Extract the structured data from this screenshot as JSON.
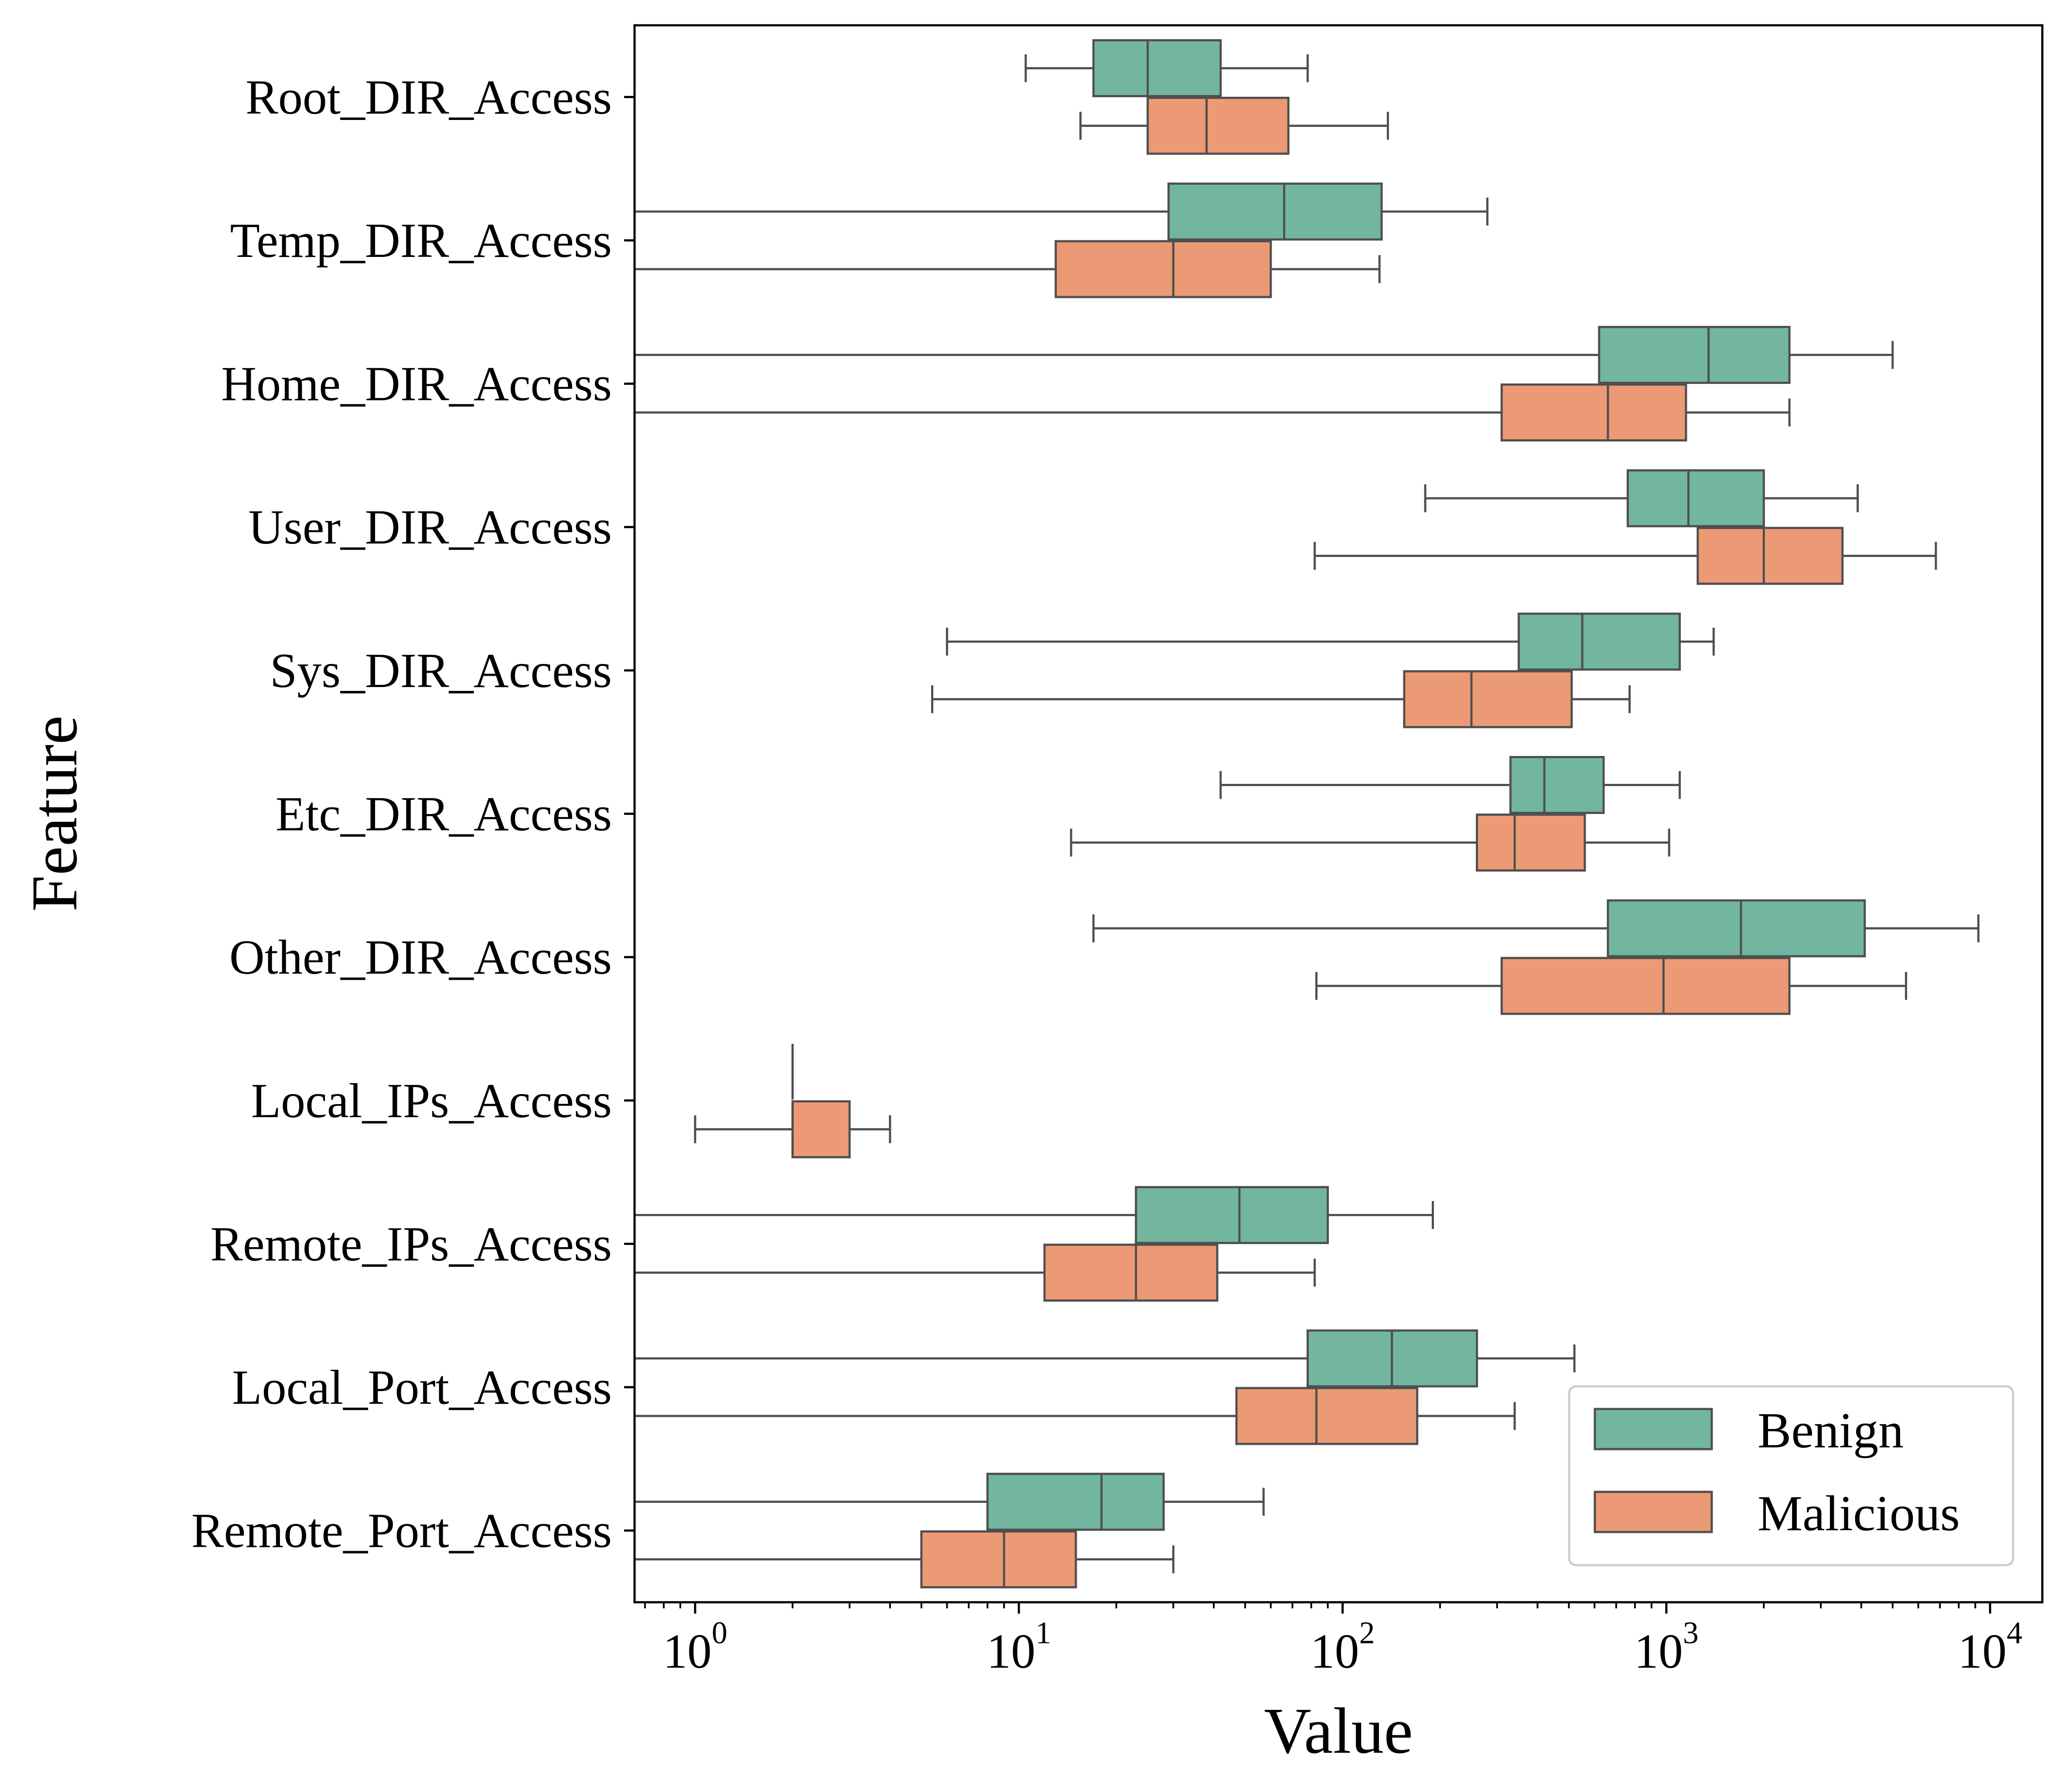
{
  "chart_data": {
    "type": "boxplot",
    "orientation": "horizontal",
    "xlabel": "Value",
    "ylabel": "Feature",
    "xscale": "log",
    "xlim": [
      0.65,
      14500
    ],
    "xticks": [
      {
        "value": 1,
        "base": "10",
        "exp": "0"
      },
      {
        "value": 10,
        "base": "10",
        "exp": "1"
      },
      {
        "value": 100,
        "base": "10",
        "exp": "2"
      },
      {
        "value": 1000,
        "base": "10",
        "exp": "3"
      },
      {
        "value": 10000,
        "base": "10",
        "exp": "4"
      }
    ],
    "grid": false,
    "legend_position": "lower-right",
    "colors": {
      "Benign": "#72b6a0",
      "Malicious": "#ec9a75",
      "line": "#4f4f4f"
    },
    "categories": [
      "Root_DIR_Access",
      "Temp_DIR_Access",
      "Home_DIR_Access",
      "User_DIR_Access",
      "Sys_DIR_Access",
      "Etc_DIR_Access",
      "Other_DIR_Access",
      "Local_IPs_Access",
      "Remote_IPs_Access",
      "Local_Port_Access",
      "Remote_Port_Access"
    ],
    "series": [
      {
        "name": "Benign",
        "boxes": [
          {
            "min": 10.5,
            "q1": 17,
            "median": 25,
            "q3": 42,
            "max": 78
          },
          {
            "min": 0.65,
            "q1": 29,
            "median": 66,
            "q3": 132,
            "max": 280
          },
          {
            "min": 0.65,
            "q1": 620,
            "median": 1350,
            "q3": 2400,
            "max": 5000
          },
          {
            "min": 180,
            "q1": 760,
            "median": 1170,
            "q3": 2000,
            "max": 3900
          },
          {
            "min": 6,
            "q1": 350,
            "median": 550,
            "q3": 1100,
            "max": 1400
          },
          {
            "min": 42,
            "q1": 330,
            "median": 420,
            "q3": 640,
            "max": 1100
          },
          {
            "min": 17,
            "q1": 660,
            "median": 1700,
            "q3": 4100,
            "max": 9200
          },
          {
            "min": 2,
            "q1": 2,
            "median": 2,
            "q3": 2,
            "max": 2
          },
          {
            "min": 0.65,
            "q1": 23,
            "median": 48,
            "q3": 90,
            "max": 190
          },
          {
            "min": 0.65,
            "q1": 78,
            "median": 142,
            "q3": 260,
            "max": 520
          },
          {
            "min": 0.65,
            "q1": 8,
            "median": 18,
            "q3": 28,
            "max": 57
          }
        ]
      },
      {
        "name": "Malicious",
        "boxes": [
          {
            "min": 15.5,
            "q1": 25,
            "median": 38,
            "q3": 68,
            "max": 138
          },
          {
            "min": 0.65,
            "q1": 13,
            "median": 30,
            "q3": 60,
            "max": 130
          },
          {
            "min": 0.65,
            "q1": 310,
            "median": 660,
            "q3": 1150,
            "max": 2400
          },
          {
            "min": 82,
            "q1": 1250,
            "median": 2000,
            "q3": 3500,
            "max": 6800
          },
          {
            "min": 5.4,
            "q1": 155,
            "median": 250,
            "q3": 510,
            "max": 770
          },
          {
            "min": 14.5,
            "q1": 260,
            "median": 340,
            "q3": 560,
            "max": 1020
          },
          {
            "min": 83,
            "q1": 310,
            "median": 980,
            "q3": 2400,
            "max": 5500
          },
          {
            "min": 1,
            "q1": 2,
            "median": 2,
            "q3": 3,
            "max": 4
          },
          {
            "min": 0.65,
            "q1": 12,
            "median": 23,
            "q3": 41,
            "max": 82
          },
          {
            "min": 0.65,
            "q1": 47,
            "median": 83,
            "q3": 170,
            "max": 340
          },
          {
            "min": 0.65,
            "q1": 5,
            "median": 9,
            "q3": 15,
            "max": 30
          }
        ]
      }
    ]
  }
}
